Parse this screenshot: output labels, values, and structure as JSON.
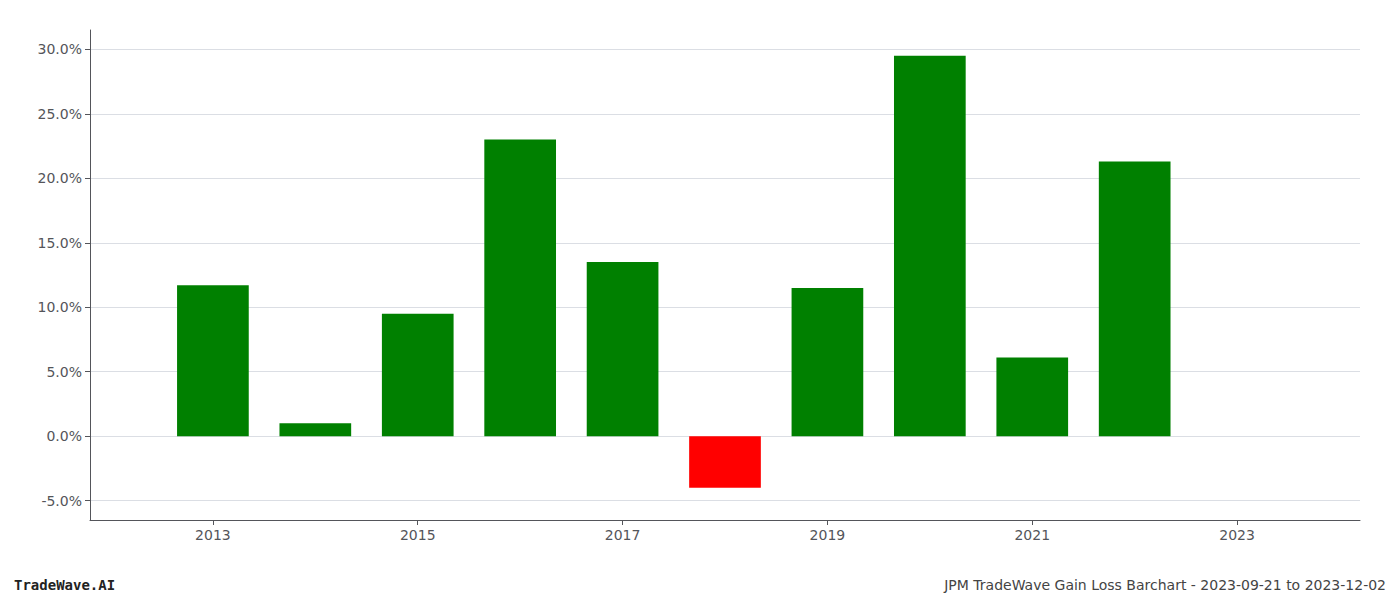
{
  "chart_data": {
    "type": "bar",
    "x": [
      2013,
      2014,
      2015,
      2016,
      2017,
      2018,
      2019,
      2020,
      2021,
      2022
    ],
    "values": [
      0.117,
      0.01,
      0.095,
      0.23,
      0.135,
      -0.04,
      0.115,
      0.295,
      0.061,
      0.213
    ],
    "colors": [
      "#008000",
      "#008000",
      "#008000",
      "#008000",
      "#008000",
      "#ff0000",
      "#008000",
      "#008000",
      "#008000",
      "#008000"
    ],
    "xlim": [
      2011.8,
      2024.2
    ],
    "xticks": [
      2013,
      2015,
      2017,
      2019,
      2021,
      2023
    ],
    "ylim": [
      -0.065,
      0.315
    ],
    "yticks": [
      {
        "value": -0.05,
        "label": "-5.0%"
      },
      {
        "value": 0.0,
        "label": "0.0%"
      },
      {
        "value": 0.05,
        "label": "5.0%"
      },
      {
        "value": 0.1,
        "label": "10.0%"
      },
      {
        "value": 0.15,
        "label": "15.0%"
      },
      {
        "value": 0.2,
        "label": "20.0%"
      },
      {
        "value": 0.25,
        "label": "25.0%"
      },
      {
        "value": 0.3,
        "label": "30.0%"
      }
    ],
    "grid": true,
    "annotations": [
      "TradeWave.AI",
      "JPM TradeWave Gain Loss Barchart - 2023-09-21 to 2023-12-02"
    ]
  }
}
